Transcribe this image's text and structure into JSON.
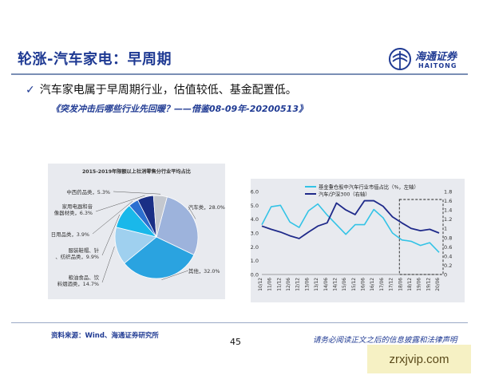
{
  "slide": {
    "title": "轮涨-汽车家电：早周期",
    "bullet": "汽车家电属于早周期行业，估值较低、基金配置低。",
    "subline": "《突发冲击后哪些行业先回暖？——借鉴08-09年-20200513》",
    "source": "资料来源：Wind、海通证券研究所",
    "page_number": "45",
    "disclaimer": "请务必阅读正文之后的信息披露和法律声明",
    "watermark": "zrxjvip.com"
  },
  "logo": {
    "name": "海通证券",
    "english": "HAITONG",
    "icon": "haitong-logo-icon"
  },
  "colors": {
    "accent": "#1f3a93",
    "fund_line": "#33c3e6",
    "pe_line": "#1f2a8a"
  },
  "chart_data": [
    {
      "type": "pie",
      "title": "2015-2019年限额以上社消零售分行业平均占比",
      "slices": [
        {
          "label": "汽车类",
          "value": 28.0,
          "display": "28.0%",
          "color": "#9db3dc"
        },
        {
          "label": "其他",
          "value": 32.0,
          "display": "32.0%",
          "color": "#2aa3e0"
        },
        {
          "label": "粮油食品、饮料烟酒类",
          "value": 14.7,
          "display": "14.7%",
          "color": "#9fd0ef"
        },
        {
          "label": "服装鞋帽、针、纺织品类",
          "value": 9.9,
          "display": "9.9%",
          "color": "#19b8ea"
        },
        {
          "label": "日用品类",
          "value": 3.9,
          "display": "3.9%",
          "color": "#2b6fd0"
        },
        {
          "label": "家用电器和音像器材类",
          "value": 6.3,
          "display": "6.3%",
          "color": "#1a2f86"
        },
        {
          "label": "中西药品类",
          "value": 5.3,
          "display": "5.3%",
          "color": "#c4c8cf"
        }
      ]
    },
    {
      "type": "line",
      "x": [
        "10/12",
        "11/06",
        "11/12",
        "12/06",
        "12/12",
        "13/06",
        "13/12",
        "14/06",
        "14/12",
        "15/06",
        "15/12",
        "16/06",
        "16/12",
        "17/06",
        "17/12",
        "18/06",
        "18/12",
        "19/06",
        "19/12",
        "20/06"
      ],
      "series": [
        {
          "name": "基金重仓股中汽车行业市值占比（%，左轴）",
          "axis": "left",
          "values": [
            3.6,
            4.9,
            5.0,
            3.8,
            3.4,
            4.6,
            5.1,
            4.3,
            3.6,
            2.9,
            3.6,
            3.6,
            4.7,
            4.1,
            3.0,
            2.5,
            2.4,
            2.1,
            2.3,
            1.6
          ]
        },
        {
          "name": "汽车/沪深300（右轴）",
          "axis": "right",
          "values": [
            1.05,
            0.98,
            0.92,
            0.84,
            0.78,
            0.92,
            1.05,
            1.12,
            1.55,
            1.4,
            1.3,
            1.6,
            1.6,
            1.48,
            1.25,
            1.12,
            1.0,
            0.95,
            0.98,
            0.9
          ]
        }
      ],
      "y_left": {
        "range": [
          0,
          6.0
        ],
        "ticks": [
          "0.0",
          "1.0",
          "2.0",
          "3.0",
          "4.0",
          "5.0",
          "6.0"
        ]
      },
      "y_right": {
        "range": [
          0,
          1.8
        ],
        "ticks": [
          "0",
          "0.2",
          "0.4",
          "0.6",
          "0.8",
          "1",
          "1.2",
          "1.4",
          "1.6",
          "1.8"
        ]
      },
      "highlight": {
        "from": "18/06",
        "to": "20/06",
        "style": "dashed-box"
      },
      "legend": "top-center"
    }
  ]
}
